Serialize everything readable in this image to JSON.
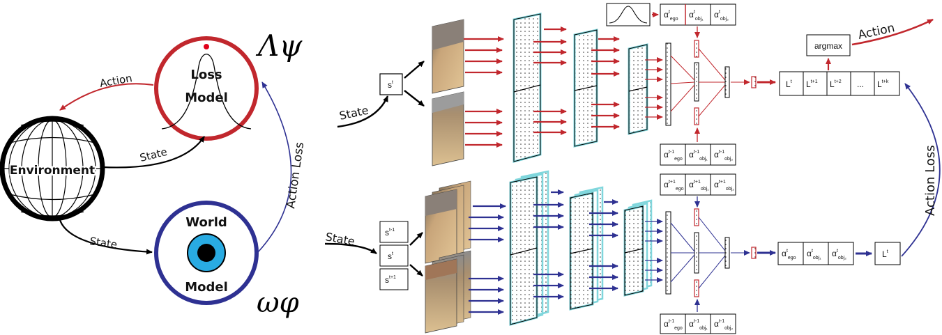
{
  "left": {
    "environment_label": "Environment",
    "loss_model": {
      "line1": "Loss",
      "line2": "Model"
    },
    "world_model": {
      "line1": "World",
      "line2": "Model"
    },
    "symbol_loss": "Λψ",
    "symbol_world": "ωφ",
    "arrow_action": "Action",
    "arrow_state_loss": "State",
    "arrow_state_world": "State",
    "arrow_action_loss": "Action Loss"
  },
  "top": {
    "state_label": "State",
    "state_box": {
      "base": "s",
      "sup": "t"
    },
    "attn_top": [
      {
        "base": "α",
        "sup": "t",
        "sub": "ego"
      },
      {
        "base": "α",
        "sup": "t",
        "sub": "obj₁"
      },
      {
        "base": "α",
        "sup": "t",
        "sub": "obj₂"
      }
    ],
    "attn_bottom": [
      {
        "base": "α",
        "sup": "t-1",
        "sub": "ego"
      },
      {
        "base": "α",
        "sup": "t-1",
        "sub": "obj₁"
      },
      {
        "base": "α",
        "sup": "t-1",
        "sub": "obj₂"
      }
    ],
    "loss_seq": [
      {
        "base": "L",
        "sup": "t"
      },
      {
        "base": "L",
        "sup": "t+1"
      },
      {
        "base": "L",
        "sup": "t+2"
      },
      {
        "base": "...",
        "sup": ""
      },
      {
        "base": "L",
        "sup": "t+k"
      }
    ],
    "argmax_label": "argmax",
    "action_label": "Action"
  },
  "bottom": {
    "state_label": "State",
    "state_boxes": [
      {
        "base": "s",
        "sup": "t-1"
      },
      {
        "base": "s",
        "sup": "t"
      },
      {
        "base": "s",
        "sup": "t+1"
      }
    ],
    "attn_top": [
      {
        "base": "α",
        "sup": "t+1",
        "sub": "ego"
      },
      {
        "base": "α",
        "sup": "t+1",
        "sub": "obj₁"
      },
      {
        "base": "α",
        "sup": "t+1",
        "sub": "obj₂"
      }
    ],
    "attn_bottom": [
      {
        "base": "α",
        "sup": "t-1",
        "sub": "ego"
      },
      {
        "base": "α",
        "sup": "t-1",
        "sub": "obj₁"
      },
      {
        "base": "α",
        "sup": "t-1",
        "sub": "obj₂"
      }
    ],
    "attn_out": [
      {
        "base": "α",
        "sup": "t",
        "sub": "ego"
      },
      {
        "base": "α",
        "sup": "t",
        "sub": "obj₁"
      },
      {
        "base": "α",
        "sup": "t",
        "sub": "obj₂"
      }
    ],
    "loss_box": {
      "base": "L",
      "sup": "t"
    }
  },
  "right_arrow_label": "Action Loss",
  "colors": {
    "red": "#c1272d",
    "blue": "#2e3192",
    "cyan_eye": "#29abe2",
    "teal_glow": "#7fd6dc"
  }
}
